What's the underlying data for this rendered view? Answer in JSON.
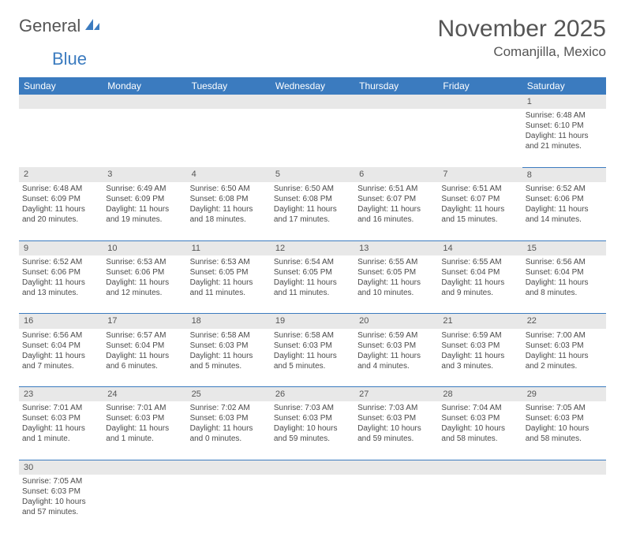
{
  "logo": {
    "text1": "General",
    "text2": "Blue"
  },
  "title": "November 2025",
  "location": "Comanjilla, Mexico",
  "colors": {
    "header_bg": "#3b7bbf",
    "header_fg": "#ffffff",
    "daynum_bg": "#e8e8e8",
    "text": "#4a4a4a",
    "rule": "#3b7bbf"
  },
  "day_headers": [
    "Sunday",
    "Monday",
    "Tuesday",
    "Wednesday",
    "Thursday",
    "Friday",
    "Saturday"
  ],
  "weeks": [
    [
      {
        "n": "",
        "sr": "",
        "ss": "",
        "dl": ""
      },
      {
        "n": "",
        "sr": "",
        "ss": "",
        "dl": ""
      },
      {
        "n": "",
        "sr": "",
        "ss": "",
        "dl": ""
      },
      {
        "n": "",
        "sr": "",
        "ss": "",
        "dl": ""
      },
      {
        "n": "",
        "sr": "",
        "ss": "",
        "dl": ""
      },
      {
        "n": "",
        "sr": "",
        "ss": "",
        "dl": ""
      },
      {
        "n": "1",
        "sr": "Sunrise: 6:48 AM",
        "ss": "Sunset: 6:10 PM",
        "dl": "Daylight: 11 hours and 21 minutes."
      }
    ],
    [
      {
        "n": "2",
        "sr": "Sunrise: 6:48 AM",
        "ss": "Sunset: 6:09 PM",
        "dl": "Daylight: 11 hours and 20 minutes."
      },
      {
        "n": "3",
        "sr": "Sunrise: 6:49 AM",
        "ss": "Sunset: 6:09 PM",
        "dl": "Daylight: 11 hours and 19 minutes."
      },
      {
        "n": "4",
        "sr": "Sunrise: 6:50 AM",
        "ss": "Sunset: 6:08 PM",
        "dl": "Daylight: 11 hours and 18 minutes."
      },
      {
        "n": "5",
        "sr": "Sunrise: 6:50 AM",
        "ss": "Sunset: 6:08 PM",
        "dl": "Daylight: 11 hours and 17 minutes."
      },
      {
        "n": "6",
        "sr": "Sunrise: 6:51 AM",
        "ss": "Sunset: 6:07 PM",
        "dl": "Daylight: 11 hours and 16 minutes."
      },
      {
        "n": "7",
        "sr": "Sunrise: 6:51 AM",
        "ss": "Sunset: 6:07 PM",
        "dl": "Daylight: 11 hours and 15 minutes."
      },
      {
        "n": "8",
        "sr": "Sunrise: 6:52 AM",
        "ss": "Sunset: 6:06 PM",
        "dl": "Daylight: 11 hours and 14 minutes."
      }
    ],
    [
      {
        "n": "9",
        "sr": "Sunrise: 6:52 AM",
        "ss": "Sunset: 6:06 PM",
        "dl": "Daylight: 11 hours and 13 minutes."
      },
      {
        "n": "10",
        "sr": "Sunrise: 6:53 AM",
        "ss": "Sunset: 6:06 PM",
        "dl": "Daylight: 11 hours and 12 minutes."
      },
      {
        "n": "11",
        "sr": "Sunrise: 6:53 AM",
        "ss": "Sunset: 6:05 PM",
        "dl": "Daylight: 11 hours and 11 minutes."
      },
      {
        "n": "12",
        "sr": "Sunrise: 6:54 AM",
        "ss": "Sunset: 6:05 PM",
        "dl": "Daylight: 11 hours and 11 minutes."
      },
      {
        "n": "13",
        "sr": "Sunrise: 6:55 AM",
        "ss": "Sunset: 6:05 PM",
        "dl": "Daylight: 11 hours and 10 minutes."
      },
      {
        "n": "14",
        "sr": "Sunrise: 6:55 AM",
        "ss": "Sunset: 6:04 PM",
        "dl": "Daylight: 11 hours and 9 minutes."
      },
      {
        "n": "15",
        "sr": "Sunrise: 6:56 AM",
        "ss": "Sunset: 6:04 PM",
        "dl": "Daylight: 11 hours and 8 minutes."
      }
    ],
    [
      {
        "n": "16",
        "sr": "Sunrise: 6:56 AM",
        "ss": "Sunset: 6:04 PM",
        "dl": "Daylight: 11 hours and 7 minutes."
      },
      {
        "n": "17",
        "sr": "Sunrise: 6:57 AM",
        "ss": "Sunset: 6:04 PM",
        "dl": "Daylight: 11 hours and 6 minutes."
      },
      {
        "n": "18",
        "sr": "Sunrise: 6:58 AM",
        "ss": "Sunset: 6:03 PM",
        "dl": "Daylight: 11 hours and 5 minutes."
      },
      {
        "n": "19",
        "sr": "Sunrise: 6:58 AM",
        "ss": "Sunset: 6:03 PM",
        "dl": "Daylight: 11 hours and 5 minutes."
      },
      {
        "n": "20",
        "sr": "Sunrise: 6:59 AM",
        "ss": "Sunset: 6:03 PM",
        "dl": "Daylight: 11 hours and 4 minutes."
      },
      {
        "n": "21",
        "sr": "Sunrise: 6:59 AM",
        "ss": "Sunset: 6:03 PM",
        "dl": "Daylight: 11 hours and 3 minutes."
      },
      {
        "n": "22",
        "sr": "Sunrise: 7:00 AM",
        "ss": "Sunset: 6:03 PM",
        "dl": "Daylight: 11 hours and 2 minutes."
      }
    ],
    [
      {
        "n": "23",
        "sr": "Sunrise: 7:01 AM",
        "ss": "Sunset: 6:03 PM",
        "dl": "Daylight: 11 hours and 1 minute."
      },
      {
        "n": "24",
        "sr": "Sunrise: 7:01 AM",
        "ss": "Sunset: 6:03 PM",
        "dl": "Daylight: 11 hours and 1 minute."
      },
      {
        "n": "25",
        "sr": "Sunrise: 7:02 AM",
        "ss": "Sunset: 6:03 PM",
        "dl": "Daylight: 11 hours and 0 minutes."
      },
      {
        "n": "26",
        "sr": "Sunrise: 7:03 AM",
        "ss": "Sunset: 6:03 PM",
        "dl": "Daylight: 10 hours and 59 minutes."
      },
      {
        "n": "27",
        "sr": "Sunrise: 7:03 AM",
        "ss": "Sunset: 6:03 PM",
        "dl": "Daylight: 10 hours and 59 minutes."
      },
      {
        "n": "28",
        "sr": "Sunrise: 7:04 AM",
        "ss": "Sunset: 6:03 PM",
        "dl": "Daylight: 10 hours and 58 minutes."
      },
      {
        "n": "29",
        "sr": "Sunrise: 7:05 AM",
        "ss": "Sunset: 6:03 PM",
        "dl": "Daylight: 10 hours and 58 minutes."
      }
    ],
    [
      {
        "n": "30",
        "sr": "Sunrise: 7:05 AM",
        "ss": "Sunset: 6:03 PM",
        "dl": "Daylight: 10 hours and 57 minutes."
      },
      {
        "n": "",
        "sr": "",
        "ss": "",
        "dl": ""
      },
      {
        "n": "",
        "sr": "",
        "ss": "",
        "dl": ""
      },
      {
        "n": "",
        "sr": "",
        "ss": "",
        "dl": ""
      },
      {
        "n": "",
        "sr": "",
        "ss": "",
        "dl": ""
      },
      {
        "n": "",
        "sr": "",
        "ss": "",
        "dl": ""
      },
      {
        "n": "",
        "sr": "",
        "ss": "",
        "dl": ""
      }
    ]
  ]
}
